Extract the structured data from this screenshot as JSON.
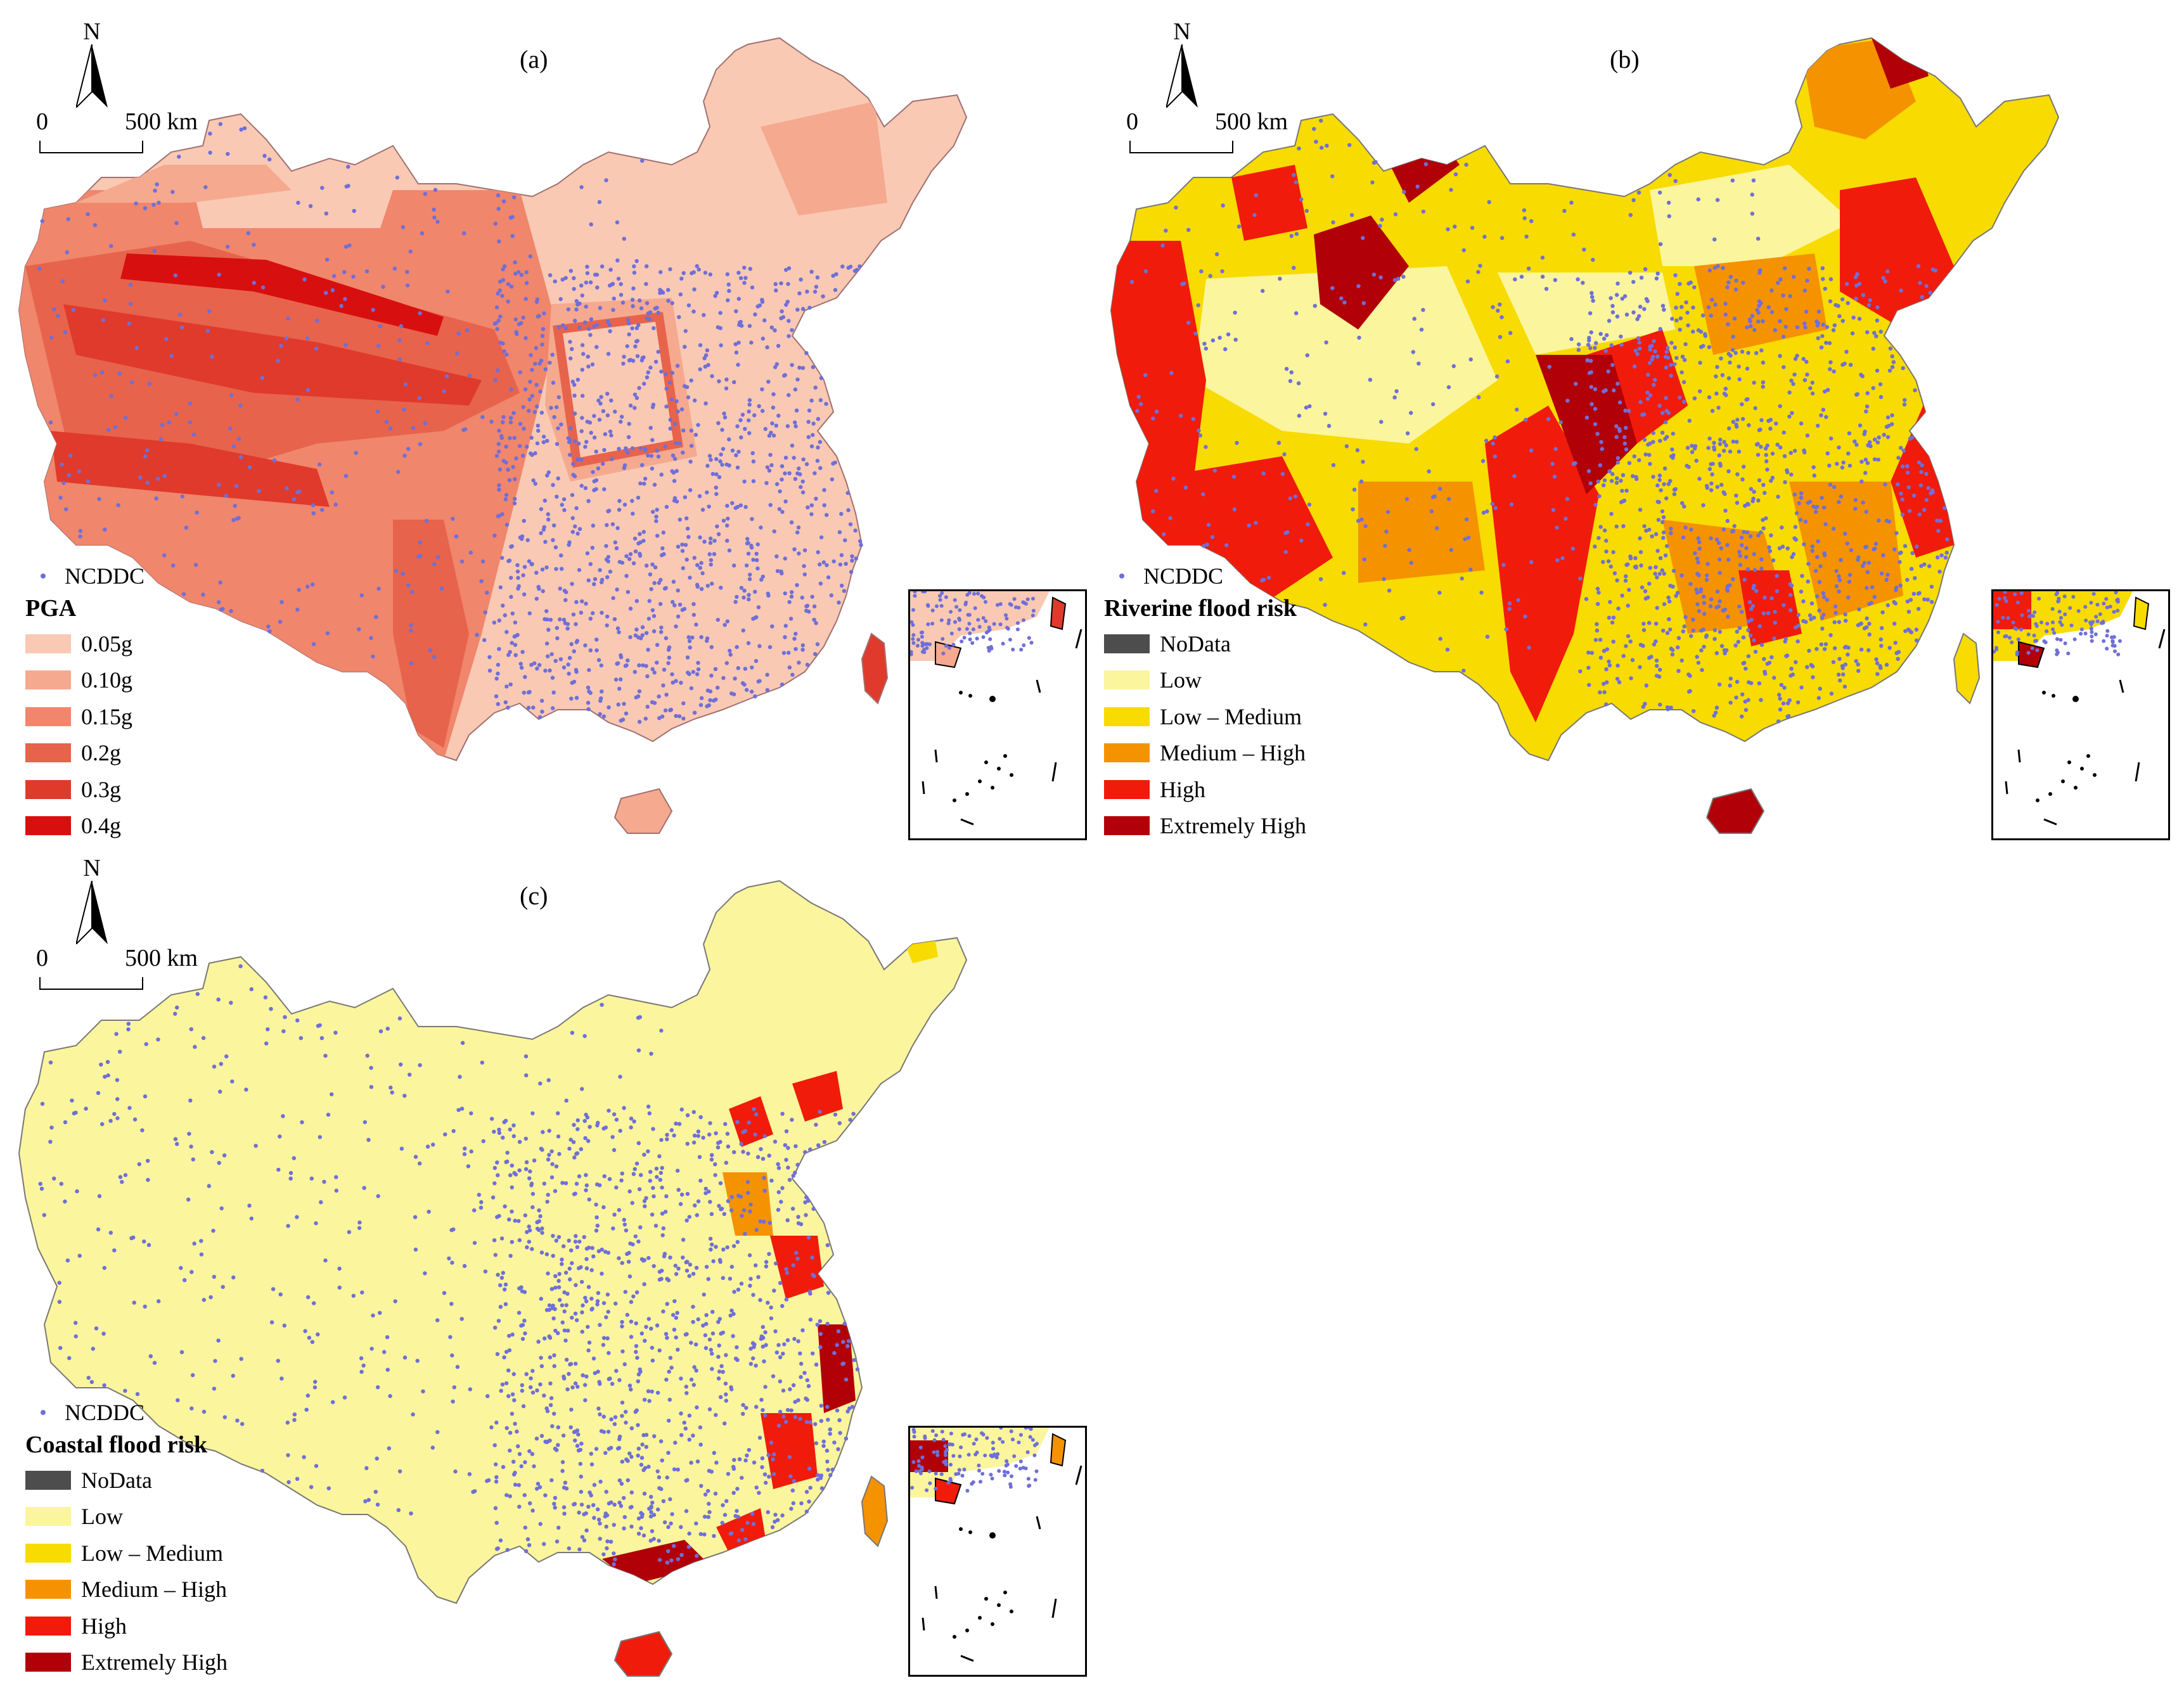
{
  "marker_color": "#6f6fd8",
  "panels": {
    "a": {
      "label": "(a)",
      "north": "N",
      "scale_start": "0",
      "scale_end": "500 km",
      "marker_label": "NCDDC",
      "legend_title": "PGA",
      "legend": [
        {
          "label": "0.05g",
          "color": "#f9c9b4"
        },
        {
          "label": "0.10g",
          "color": "#f5a98e"
        },
        {
          "label": "0.15g",
          "color": "#f0866c"
        },
        {
          "label": "0.2g",
          "color": "#e7634c"
        },
        {
          "label": "0.3g",
          "color": "#e03a2c"
        },
        {
          "label": "0.4g",
          "color": "#d80f0f"
        }
      ]
    },
    "b": {
      "label": "(b)",
      "north": "N",
      "scale_start": "0",
      "scale_end": "500 km",
      "marker_label": "NCDDC",
      "legend_title": "Riverine flood risk",
      "legend": [
        {
          "label": "NoData",
          "color": "#4d4d4d"
        },
        {
          "label": "Low",
          "color": "#fbf59d"
        },
        {
          "label": "Low – Medium",
          "color": "#f8db00"
        },
        {
          "label": "Medium – High",
          "color": "#f59200"
        },
        {
          "label": "High",
          "color": "#f01b0b"
        },
        {
          "label": "Extremely High",
          "color": "#b10008"
        }
      ]
    },
    "c": {
      "label": "(c)",
      "north": "N",
      "scale_start": "0",
      "scale_end": "500 km",
      "marker_label": "NCDDC",
      "legend_title": "Coastal flood risk",
      "legend": [
        {
          "label": "NoData",
          "color": "#4d4d4d"
        },
        {
          "label": "Low",
          "color": "#fbf59d"
        },
        {
          "label": "Low – Medium",
          "color": "#f8db00"
        },
        {
          "label": "Medium – High",
          "color": "#f59200"
        },
        {
          "label": "High",
          "color": "#f01b0b"
        },
        {
          "label": "Extremely High",
          "color": "#b10008"
        }
      ]
    }
  }
}
